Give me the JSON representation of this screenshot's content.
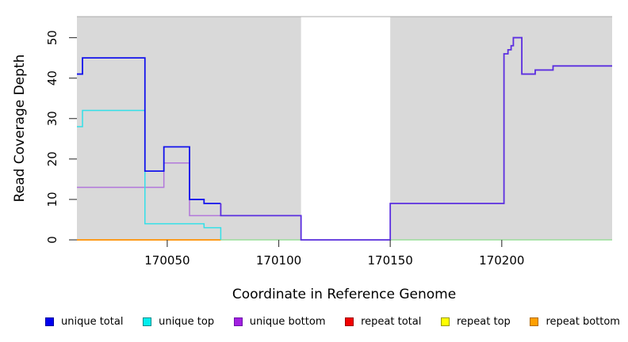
{
  "chart_data": {
    "type": "line",
    "subtype": "step-coverage-plot",
    "title": "",
    "xlabel": "Coordinate in Reference Genome",
    "ylabel": "Read Coverage Depth",
    "xlim": [
      170009.5,
      170249.5
    ],
    "ylim": [
      0,
      55.2
    ],
    "xticks": [
      "170050",
      "170100",
      "170150",
      "170200"
    ],
    "xtick_values": [
      170050,
      170100,
      170150,
      170200
    ],
    "yticks": [
      "0",
      "10",
      "20",
      "30",
      "40",
      "50"
    ],
    "ytick_values": [
      0,
      10,
      20,
      30,
      40,
      50
    ],
    "grid": false,
    "plot_bg_color": "#D9D9D9",
    "plot_top_border_color": "#ABABAB",
    "masked_region": {
      "from": 170110,
      "to": 170150,
      "color": "#FFFFFF"
    },
    "legend_position": "bottom",
    "series": [
      {
        "name": "unique total",
        "color": "#0000EE",
        "steps": [
          [
            170010,
            41
          ],
          [
            170012,
            45
          ],
          [
            170040,
            17
          ],
          [
            170048.5,
            23
          ],
          [
            170060,
            10
          ],
          [
            170066.5,
            9
          ],
          [
            170074,
            6
          ],
          [
            170110,
            0
          ],
          [
            170150,
            9
          ],
          [
            170201,
            46
          ],
          [
            170202.8,
            47
          ],
          [
            170204.2,
            48
          ],
          [
            170205.2,
            50
          ],
          [
            170209,
            41
          ],
          [
            170215,
            42
          ],
          [
            170223,
            43
          ]
        ],
        "end": 170249.5
      },
      {
        "name": "unique top",
        "color": "#00E5EE",
        "steps": [
          [
            170010,
            28
          ],
          [
            170012,
            32
          ],
          [
            170040,
            4
          ],
          [
            170066.5,
            3
          ],
          [
            170074,
            0
          ]
        ],
        "end": 170249.5
      },
      {
        "name": "unique bottom",
        "color": "#A21FE0",
        "steps": [
          [
            170010,
            13
          ],
          [
            170048.5,
            19
          ],
          [
            170060,
            6
          ],
          [
            170110,
            0
          ],
          [
            170150,
            9
          ],
          [
            170201,
            46
          ],
          [
            170202.8,
            47
          ],
          [
            170204.2,
            48
          ],
          [
            170205.2,
            50
          ],
          [
            170209,
            41
          ],
          [
            170215,
            42
          ],
          [
            170223,
            43
          ]
        ],
        "end": 170249.5
      },
      {
        "name": "repeat total",
        "color": "#EE0000",
        "steps": [
          [
            170010,
            0
          ]
        ],
        "end": 170249.5
      },
      {
        "name": "repeat top",
        "color": "#FFFF00",
        "steps": [
          [
            170010,
            0
          ]
        ],
        "end": 170249.5
      },
      {
        "name": "repeat bottom",
        "color": "#FFA000",
        "steps": [
          [
            170010,
            0
          ]
        ],
        "end": 170074
      }
    ],
    "plot_lines": [
      {
        "name": "baseline-green",
        "color": "#8ADC8A",
        "width": 1.3,
        "steps": [
          [
            170074,
            0
          ]
        ],
        "end": 170249.5
      },
      {
        "name": "repeat-bottom-line",
        "color": "#FF9100",
        "width": 1.8,
        "steps": [
          [
            170009.5,
            0
          ]
        ],
        "end": 170074
      },
      {
        "name": "unique-bottom-line",
        "color": "#B277DB",
        "width": 1.5,
        "steps": [
          [
            170009.5,
            13
          ],
          [
            170048.5,
            19
          ],
          [
            170060,
            6
          ]
        ],
        "end": 170074
      },
      {
        "name": "unique-top-line",
        "color": "#33E0E8",
        "width": 1.5,
        "steps": [
          [
            170009.5,
            28
          ],
          [
            170012,
            32
          ],
          [
            170040,
            4
          ],
          [
            170066.5,
            3
          ],
          [
            170074,
            0
          ]
        ],
        "end": 170074
      },
      {
        "name": "unique-total-line",
        "color": "#1212EC",
        "width": 1.8,
        "steps": [
          [
            170009.5,
            41
          ],
          [
            170012,
            45
          ],
          [
            170040,
            17
          ],
          [
            170048.5,
            23
          ],
          [
            170060,
            10
          ],
          [
            170066.5,
            9
          ]
        ],
        "end": 170074
      },
      {
        "name": "total-and-bottom-merged-line",
        "color": "#5B2EE0",
        "width": 1.8,
        "steps": [
          [
            170074,
            9
          ],
          [
            170074,
            6
          ],
          [
            170110,
            0
          ],
          [
            170150,
            9
          ],
          [
            170201,
            46
          ],
          [
            170202.8,
            47
          ],
          [
            170204.2,
            48
          ],
          [
            170205.2,
            50
          ],
          [
            170209,
            41
          ],
          [
            170215,
            42
          ],
          [
            170223,
            43
          ]
        ],
        "end": 170249.5
      }
    ]
  },
  "legend": {
    "items": [
      {
        "label": "unique total",
        "fill": "#0000F0",
        "border": "#00009C"
      },
      {
        "label": "unique top",
        "fill": "#00EEEE",
        "border": "#008B8B"
      },
      {
        "label": "unique bottom",
        "fill": "#A21FE0",
        "border": "#6B12A8"
      },
      {
        "label": "repeat total",
        "fill": "#F20000",
        "border": "#9C0000"
      },
      {
        "label": "repeat top",
        "fill": "#FFFF00",
        "border": "#9A9A00"
      },
      {
        "label": "repeat bottom",
        "fill": "#FFA000",
        "border": "#B36B00"
      }
    ]
  }
}
